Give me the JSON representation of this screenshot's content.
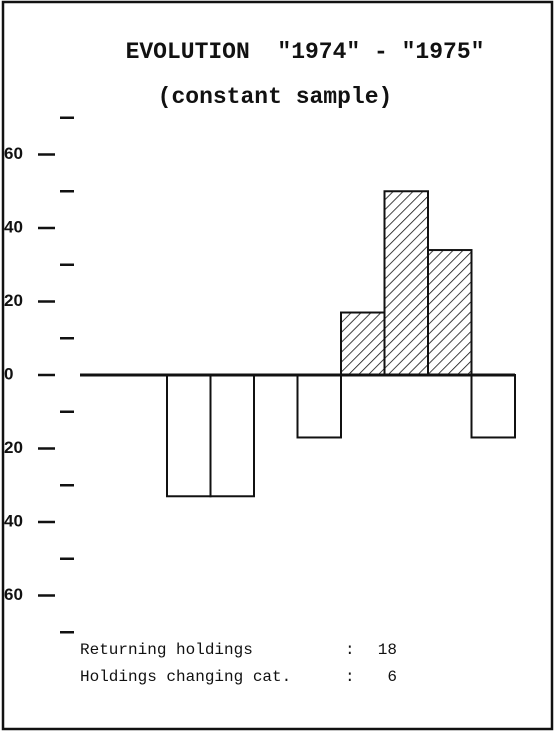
{
  "chart_data": {
    "type": "bar",
    "title": "EVOLUTION  \"1974\" - \"1975\"",
    "subtitle": "(constant sample)",
    "categories": [
      null,
      null,
      null,
      null,
      null,
      null,
      null,
      null,
      null,
      null
    ],
    "values": [
      0,
      0,
      -33,
      -33,
      0,
      -17,
      17,
      50,
      34,
      -17
    ],
    "ylim": [
      -80,
      80
    ],
    "yticks": [
      {
        "value": 60,
        "label": "60"
      },
      {
        "value": 40,
        "label": "40"
      },
      {
        "value": 20,
        "label": "20"
      },
      0,
      {
        "value": -20,
        "label": "20"
      },
      {
        "value": -40,
        "label": "40"
      },
      {
        "value": -60,
        "label": "60"
      }
    ],
    "yminor": [
      70,
      50,
      30,
      10,
      -10,
      -30,
      -50,
      -70
    ],
    "color": "#111111",
    "annotations": [
      {
        "label": "Returning holdings",
        "sep": ":",
        "value": 18
      },
      {
        "label": "Holdings changing cat.",
        "sep": ":",
        "value": 6
      }
    ]
  }
}
